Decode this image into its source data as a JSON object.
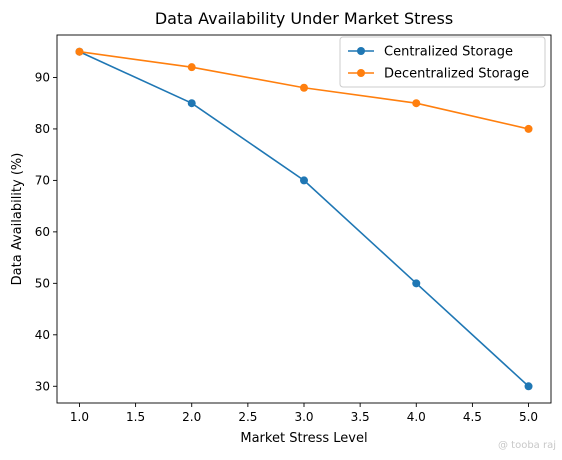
{
  "chart_data": {
    "type": "line",
    "title": "Data Availability Under Market Stress",
    "xlabel": "Market Stress Level",
    "ylabel": "Data Availability (%)",
    "x": [
      1.0,
      2.0,
      3.0,
      4.0,
      5.0
    ],
    "xlim": [
      0.8,
      5.2
    ],
    "ylim": [
      26.75,
      98.25
    ],
    "xticks": [
      "1.0",
      "1.5",
      "2.0",
      "2.5",
      "3.0",
      "3.5",
      "4.0",
      "4.5",
      "5.0"
    ],
    "yticks": [
      "30",
      "40",
      "50",
      "60",
      "70",
      "80",
      "90"
    ],
    "grid": false,
    "legend_position": "top-right",
    "series": [
      {
        "name": "Centralized Storage",
        "color": "#1f77b4",
        "values": [
          95,
          85,
          70,
          50,
          30
        ]
      },
      {
        "name": "Decentralized Storage",
        "color": "#ff7f0e",
        "values": [
          95,
          92,
          88,
          85,
          80
        ]
      }
    ]
  },
  "watermark": "@ tooba raj"
}
